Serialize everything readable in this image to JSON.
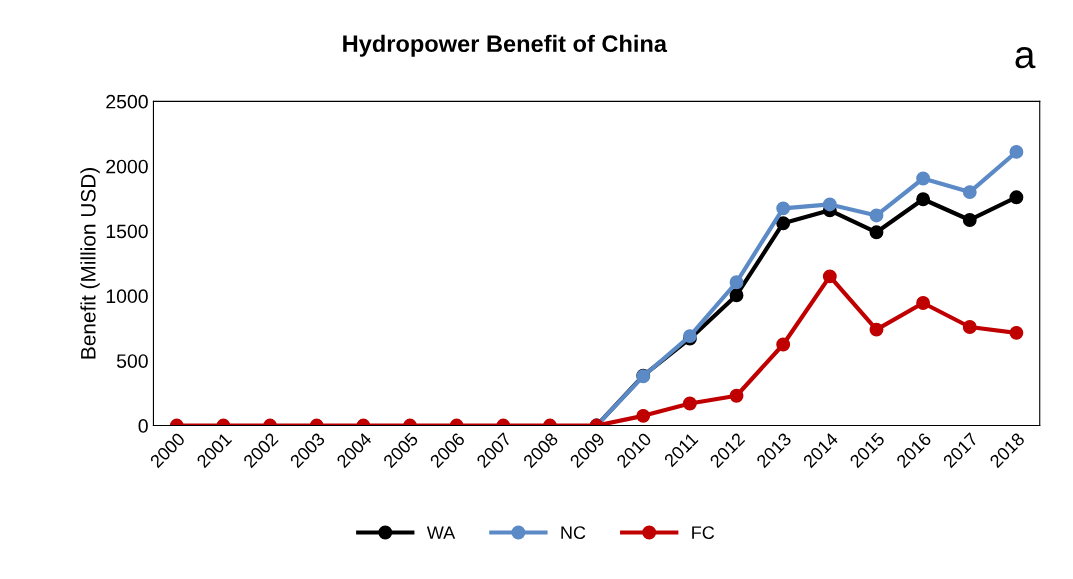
{
  "chart_data": {
    "type": "line",
    "title": "Hydropower Benefit of China",
    "ylabel": "Benefit (Million USD)",
    "categories": [
      "2000",
      "2001",
      "2002",
      "2003",
      "2004",
      "2005",
      "2006",
      "2007",
      "2008",
      "2009",
      "2010",
      "2011",
      "2012",
      "2013",
      "2014",
      "2015",
      "2016",
      "2017",
      "2018"
    ],
    "series": [
      {
        "name": "WA",
        "color": "#000000",
        "values": [
          null,
          null,
          null,
          null,
          null,
          null,
          null,
          null,
          null,
          0,
          385,
          670,
          1005,
          1560,
          1660,
          1490,
          1745,
          1585,
          1760
        ]
      },
      {
        "name": "NC",
        "color": "#5b8ac6",
        "values": [
          null,
          null,
          null,
          null,
          null,
          null,
          null,
          null,
          null,
          0,
          380,
          690,
          1105,
          1675,
          1705,
          1620,
          1905,
          1800,
          2110
        ]
      },
      {
        "name": "FC",
        "color": "#c00000",
        "values": [
          0,
          0,
          0,
          0,
          0,
          0,
          0,
          0,
          0,
          0,
          75,
          170,
          230,
          625,
          1150,
          740,
          945,
          760,
          715
        ]
      }
    ],
    "ylim": [
      0,
      2500
    ],
    "yticks": [
      0,
      500,
      1000,
      1500,
      2000,
      2500
    ],
    "annotations": [
      "a"
    ],
    "legend": "bottom",
    "grid": false,
    "marker": "circle",
    "line_style": "solid"
  }
}
